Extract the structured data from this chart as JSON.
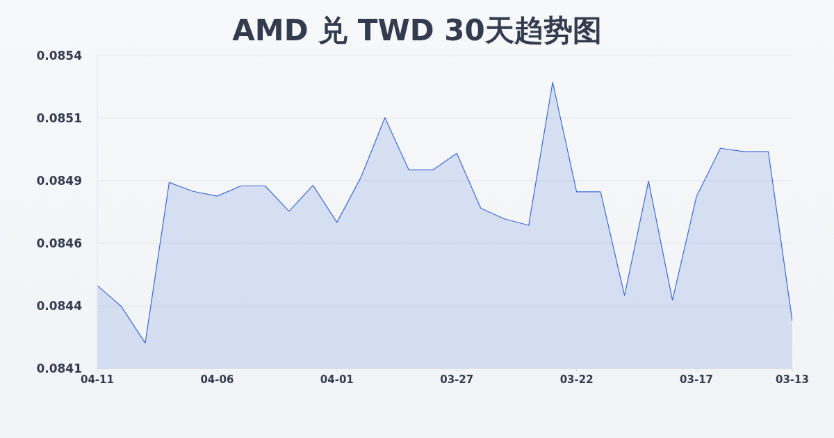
{
  "chart_data": {
    "type": "area",
    "title": "AMD 兑 TWD 30天趋势图",
    "categories": [
      "04-11",
      null,
      null,
      null,
      null,
      "04-06",
      null,
      null,
      null,
      null,
      "04-01",
      null,
      null,
      null,
      null,
      "03-27",
      null,
      null,
      null,
      null,
      "03-22",
      null,
      null,
      null,
      null,
      "03-17",
      null,
      null,
      null,
      "03-13"
    ],
    "values": [
      0.084445,
      0.084358,
      0.084206,
      0.084873,
      0.084836,
      0.084816,
      0.084859,
      0.084859,
      0.084753,
      0.084861,
      0.084707,
      0.084894,
      0.085142,
      0.084925,
      0.084925,
      0.084994,
      0.084766,
      0.084721,
      0.084695,
      0.085289,
      0.084834,
      0.084834,
      0.084403,
      0.084879,
      0.084384,
      0.084814,
      0.085015,
      0.085001,
      0.085001,
      0.084297
    ],
    "color": "#3b6bd3",
    "ylim": [
      0.0841,
      0.0854
    ],
    "yticks": [
      0.0841,
      {
        "value": 0.08436,
        "label": "0.0844"
      },
      {
        "value": 0.08462,
        "label": "0.0846"
      },
      {
        "value": 0.08488,
        "label": "0.0849"
      },
      {
        "value": 0.08514,
        "label": "0.0851"
      },
      0.0854
    ],
    "grid": "y"
  }
}
